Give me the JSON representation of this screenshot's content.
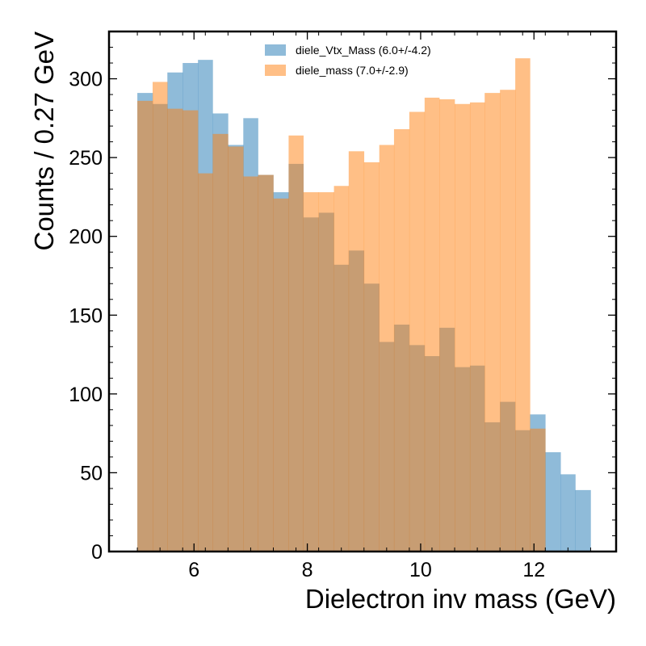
{
  "chart_data": {
    "type": "histogram",
    "xlabel": "Dielectron inv mass (GeV)",
    "ylabel": "Counts / 0.27 GeV",
    "xlim": [
      4.5,
      13.45
    ],
    "ylim": [
      0,
      330
    ],
    "x_ticks": [
      6,
      8,
      10,
      12
    ],
    "y_ticks": [
      0,
      50,
      100,
      150,
      200,
      250,
      300
    ],
    "legend_position": "top-center",
    "series": [
      {
        "name": "diele_Vtx_Mass (6.0+/-4.2)",
        "color": "#1f77b4",
        "opacity": 0.5,
        "bin_edges": [
          5.0,
          5.27,
          5.53,
          5.8,
          6.07,
          6.33,
          6.6,
          6.87,
          7.13,
          7.4,
          7.67,
          7.93,
          8.2,
          8.47,
          8.73,
          9.0,
          9.27,
          9.53,
          9.8,
          10.07,
          10.33,
          10.6,
          10.87,
          11.13,
          11.4,
          11.67,
          11.93,
          12.2,
          12.47,
          12.73,
          13.0
        ],
        "values": [
          291,
          284,
          304,
          310,
          312,
          278,
          258,
          275,
          239,
          228,
          246,
          212,
          215,
          182,
          191,
          170,
          133,
          144,
          131,
          124,
          142,
          117,
          118,
          82,
          95,
          77,
          87,
          63,
          49,
          39
        ]
      },
      {
        "name": "diele_mass (7.0+/-2.9)",
        "color": "#ff7f0e",
        "opacity": 0.5,
        "bin_edges": [
          5.0,
          5.27,
          5.53,
          5.8,
          6.07,
          6.33,
          6.6,
          6.87,
          7.13,
          7.4,
          7.67,
          7.93,
          8.2,
          8.47,
          8.73,
          9.0,
          9.27,
          9.53,
          9.8,
          10.07,
          10.33,
          10.6,
          10.87,
          11.13,
          11.4,
          11.67,
          11.93,
          12.2
        ],
        "values": [
          286,
          298,
          281,
          280,
          240,
          265,
          257,
          238,
          239,
          224,
          264,
          228,
          228,
          232,
          254,
          247,
          258,
          268,
          279,
          288,
          287,
          284,
          285,
          291,
          293,
          313,
          78
        ]
      }
    ]
  }
}
